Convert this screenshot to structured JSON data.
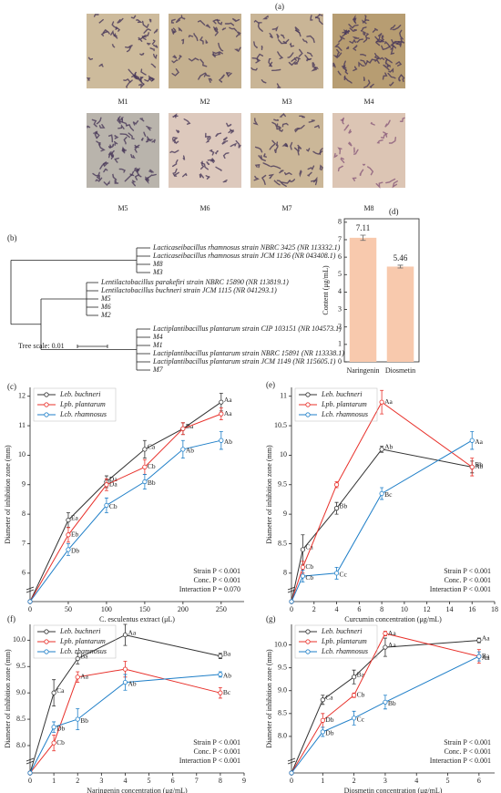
{
  "panel_a": {
    "panel_label": "(a)",
    "micrographs": [
      "M1",
      "M2",
      "M3",
      "M4",
      "M5",
      "M6",
      "M7",
      "M8"
    ]
  },
  "panel_b": {
    "panel_label": "(b)",
    "leaves": [
      "Lacticaseibacillus rhamnosus strain NBRC 3425 (NR 113332.1)",
      "Lacticaseibacillus rhamnosus strain JCM 1136 (NR 043408.1)",
      "M8",
      "M3",
      "Lentilactobacillus parakefiri strain NBRC 15890 (NR 113819.1)",
      "Lentilactobacillus buchneri strain JCM 1115 (NR 041293.1)",
      "M5",
      "M6",
      "M2",
      "Lactiplantibacillus plantarum strain CIP 103151 (NR 104573.1)",
      "M4",
      "M1",
      "Lactiplantibacillus plantarum strain NBRC 15891 (NR 113338.1)",
      "Lactiplantibacillus plantarum strain JCM 1149 (NR 115605.1)",
      "M7"
    ],
    "tree_scale": "Tree scale: 0.01"
  },
  "chart_data": [
    {
      "type": "bar",
      "panel_label": "(d)",
      "ylabel": "Content (μg/mL)",
      "categories": [
        "Naringenin",
        "Diosmetin"
      ],
      "values": [
        7.11,
        5.46
      ],
      "errors": [
        0.15,
        0.08
      ],
      "color": "#f8c9ad",
      "ylim": [
        0,
        8.2
      ],
      "yticks": [
        0,
        1,
        2,
        3,
        4,
        5,
        6,
        7,
        8
      ]
    },
    {
      "type": "line",
      "panel_label": "(c)",
      "xlabel": "C. esculentus   extract (μL)",
      "ylabel": "Diameter of inhibition zone (mm)",
      "x": [
        0,
        50,
        100,
        150,
        200,
        250
      ],
      "xlim": [
        0,
        280
      ],
      "xticks": [
        0,
        50,
        100,
        150,
        200,
        250
      ],
      "ylim": [
        0,
        12.3
      ],
      "y_break": 5.5,
      "yticks": [
        6,
        7,
        8,
        9,
        10,
        11,
        12
      ],
      "series": [
        {
          "name": "Leb. buchneri",
          "color": "#333333",
          "values": [
            0,
            7.8,
            9.1,
            10.2,
            10.9,
            11.8
          ],
          "errors": [
            0,
            0.25,
            0.2,
            0.3,
            0.2,
            0.3
          ],
          "letters": [
            null,
            "Ea",
            "Da",
            "Ca",
            "Ba",
            "Aa"
          ]
        },
        {
          "name": "Lpb. plantarum",
          "color": "#e8302a",
          "values": [
            0,
            7.3,
            9.0,
            9.6,
            10.9,
            11.4
          ],
          "errors": [
            0,
            0.25,
            0.2,
            0.25,
            0.2,
            0.2
          ],
          "letters": [
            null,
            "Eb",
            "Da",
            "Cb",
            null,
            "Aa"
          ]
        },
        {
          "name": "Lcb. rhamnosus",
          "color": "#1f7fc8",
          "values": [
            0,
            6.8,
            8.3,
            9.1,
            10.2,
            10.5
          ],
          "errors": [
            0,
            0.2,
            0.25,
            0.25,
            0.3,
            0.3
          ],
          "letters": [
            null,
            "Db",
            "Cb",
            "Bb",
            "Ab",
            "Ab"
          ]
        }
      ],
      "stats": [
        "Strain P < 0.001",
        "Conc. P < 0.001",
        "Interaction P = 0.070"
      ]
    },
    {
      "type": "line",
      "panel_label": "(e)",
      "xlabel": "Curcumin concentration (μg/mL)",
      "ylabel": "Diameter of inhibition zone (mm)",
      "x": [
        0,
        1,
        4,
        8,
        16
      ],
      "xlim": [
        0,
        18
      ],
      "xticks": [
        0,
        2,
        4,
        6,
        8,
        10,
        12,
        14,
        16,
        18
      ],
      "ylim": [
        0,
        11.15
      ],
      "y_break": 7.75,
      "yticks": [
        8,
        8.5,
        9,
        9.5,
        10,
        10.5,
        11
      ],
      "series": [
        {
          "name": "Leb. buchneri",
          "color": "#333333",
          "values": [
            0,
            8.4,
            9.1,
            10.1,
            9.8
          ],
          "errors": [
            0,
            0.25,
            0.1,
            0.05,
            0.1
          ],
          "letters": [
            null,
            "Ca",
            "Bb",
            "Ab",
            "Bb"
          ]
        },
        {
          "name": "Lpb. plantarum",
          "color": "#e8302a",
          "values": [
            0,
            8.1,
            9.5,
            10.9,
            9.8
          ],
          "errors": [
            0,
            0.1,
            0.05,
            0.2,
            0.15
          ],
          "letters": [
            null,
            "Cb",
            null,
            "Aa",
            "Ab"
          ]
        },
        {
          "name": "Lcb. rhamnosus",
          "color": "#1f7fc8",
          "values": [
            0,
            7.95,
            8.0,
            9.35,
            10.25
          ],
          "errors": [
            0,
            0.1,
            0.1,
            0.1,
            0.15
          ],
          "letters": [
            null,
            "Cb",
            "Cc",
            "Bc",
            "Aa"
          ]
        }
      ],
      "stats": [
        "Strain P < 0.001",
        "Conc. P < 0.001",
        "Interaction P < 0.001"
      ]
    },
    {
      "type": "line",
      "panel_label": "(f)",
      "xlabel": "Naringenin concentration (μg/mL)",
      "ylabel": "Diameter of inhibition zone (mm)",
      "x": [
        0,
        1,
        2,
        4,
        8
      ],
      "xlim": [
        0,
        9
      ],
      "xticks": [
        0,
        1,
        2,
        3,
        4,
        5,
        6,
        7,
        8,
        9
      ],
      "ylim": [
        0,
        10.3
      ],
      "y_break": 7.74,
      "yticks": [
        {
          "value": 8,
          "label": "8.0"
        },
        8.5,
        {
          "value": 9,
          "label": "9.0"
        },
        9.5,
        {
          "value": 10,
          "label": "10.0"
        }
      ],
      "series": [
        {
          "name": "Leb. buchneri",
          "color": "#333333",
          "values": [
            0,
            9.0,
            9.65,
            10.1,
            9.7
          ],
          "errors": [
            0,
            0.25,
            0.1,
            0.2,
            0.05
          ],
          "letters": [
            null,
            "Ca",
            "Ba",
            "Aa",
            "Ba"
          ]
        },
        {
          "name": "Lpb. plantarum",
          "color": "#e8302a",
          "values": [
            0,
            8.05,
            9.3,
            9.45,
            9.0
          ],
          "errors": [
            0,
            0.15,
            0.1,
            0.15,
            0.1
          ],
          "letters": [
            null,
            "Cb",
            "Aa",
            null,
            "Bc"
          ]
        },
        {
          "name": "Lcb. rhamnosus",
          "color": "#1f7fc8",
          "values": [
            0,
            8.35,
            8.5,
            9.2,
            9.35
          ],
          "errors": [
            0,
            0.1,
            0.2,
            0.15,
            0.05
          ],
          "letters": [
            null,
            "Db",
            "Bb",
            "Ab",
            "Ab"
          ]
        }
      ],
      "stats": [
        "Strain P < 0.001",
        "Conc. P < 0.001",
        "Interaction P < 0.001"
      ]
    },
    {
      "type": "line",
      "panel_label": "(g)",
      "xlabel": "Diosmetin concentration (μg/mL)",
      "ylabel": "Diameter of inhibition zone (mm)",
      "x": [
        0,
        1,
        2,
        3,
        6
      ],
      "xlim": [
        0,
        6.5
      ],
      "xticks": [
        0,
        1,
        2,
        3,
        4,
        5,
        6
      ],
      "ylim": [
        0,
        10.45
      ],
      "y_break": 7.5,
      "yticks": [
        {
          "value": 8,
          "label": "8.0"
        },
        8.5,
        {
          "value": 9,
          "label": "9.0"
        },
        9.5,
        {
          "value": 10,
          "label": "10.0"
        }
      ],
      "series": [
        {
          "name": "Leb. buchneri",
          "color": "#333333",
          "values": [
            0,
            8.8,
            9.3,
            9.95,
            10.1
          ],
          "errors": [
            0,
            0.1,
            0.15,
            0.2,
            0.05
          ],
          "letters": [
            null,
            "Ca",
            "Ba",
            "Aa",
            "Aa"
          ]
        },
        {
          "name": "Lpb. plantarum",
          "color": "#e8302a",
          "values": [
            0,
            8.35,
            8.9,
            10.25,
            9.75
          ],
          "errors": [
            0,
            0.15,
            0.05,
            0.05,
            0.15
          ],
          "letters": [
            null,
            "Db",
            "Cb",
            "Aa",
            "Ba"
          ]
        },
        {
          "name": "Lcb. rhamnosus",
          "color": "#1f7fc8",
          "values": [
            0,
            8.1,
            8.4,
            8.75,
            9.75
          ],
          "errors": [
            0,
            0.1,
            0.15,
            0.15,
            0.1
          ],
          "letters": [
            null,
            "Db",
            "Cc",
            "Bb",
            "Aa"
          ]
        }
      ],
      "stats": [
        "Strain P < 0.001",
        "Conc. P < 0.001",
        "Interaction P < 0.001"
      ]
    }
  ]
}
